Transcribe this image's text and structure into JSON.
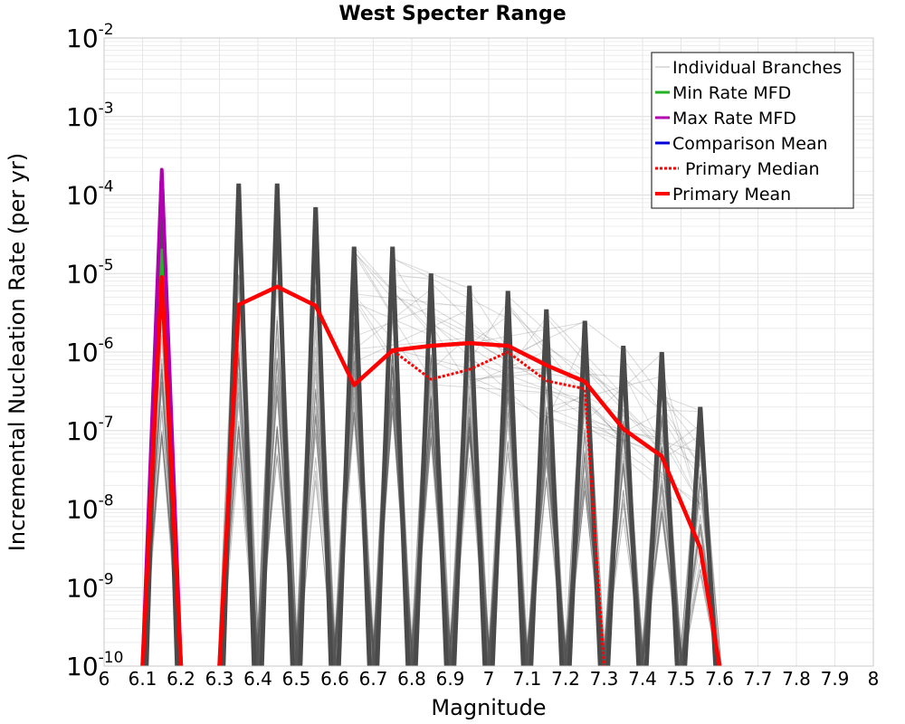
{
  "chart_data": {
    "type": "line",
    "title": "West Specter Range",
    "xlabel": "Magnitude",
    "ylabel": "Incremental Nucleation Rate (per yr)",
    "xlim": [
      6,
      8
    ],
    "ylim": [
      1e-10,
      0.01
    ],
    "yscale": "log",
    "grid": true,
    "legend_position": "top-right",
    "x_ticks": [
      "6",
      "6.1",
      "6.2",
      "6.3",
      "6.4",
      "6.5",
      "6.6",
      "6.7",
      "6.8",
      "6.9",
      "7",
      "7.1",
      "7.2",
      "7.3",
      "7.4",
      "7.5",
      "7.6",
      "7.7",
      "7.8",
      "7.9",
      "8"
    ],
    "y_ticks": [
      {
        "base": "10",
        "exp": "-2"
      },
      {
        "base": "10",
        "exp": "-3"
      },
      {
        "base": "10",
        "exp": "-4"
      },
      {
        "base": "10",
        "exp": "-5"
      },
      {
        "base": "10",
        "exp": "-6"
      },
      {
        "base": "10",
        "exp": "-7"
      },
      {
        "base": "10",
        "exp": "-8"
      },
      {
        "base": "10",
        "exp": "-9"
      },
      {
        "base": "10",
        "exp": "-10"
      }
    ],
    "legend": [
      {
        "label": "Individual Branches",
        "color": "#bbbbbb",
        "style": "thin"
      },
      {
        "label": "Min Rate MFD",
        "color": "#22b322",
        "style": "solid"
      },
      {
        "label": "Max Rate MFD",
        "color": "#b000b0",
        "style": "solid"
      },
      {
        "label": "Comparison Mean",
        "color": "#0000dd",
        "style": "solid"
      },
      {
        "label": "Primary Median",
        "color": "#ff0000",
        "style": "dotted"
      },
      {
        "label": "Primary Mean",
        "color": "#ff0000",
        "style": "thick"
      }
    ],
    "series": [
      {
        "name": "Primary Mean",
        "color": "#ff0000",
        "style": "thick",
        "x": [
          6.15,
          6.35,
          6.45,
          6.55,
          6.65,
          6.75,
          6.85,
          6.95,
          7.05,
          7.15,
          7.25,
          7.35,
          7.45,
          7.55
        ],
        "y": [
          9e-06,
          4e-06,
          6.8e-06,
          3.9e-06,
          3.8e-07,
          1.05e-06,
          1.2e-06,
          1.3e-06,
          1.2e-06,
          6.8e-07,
          4.2e-07,
          1.05e-07,
          4.7e-08,
          3.2e-09
        ]
      },
      {
        "name": "Primary Median",
        "color": "#ff0000",
        "style": "dotted",
        "x": [
          6.15,
          6.35,
          6.45,
          6.55,
          6.65,
          6.75,
          6.85,
          6.95,
          7.05,
          7.15,
          7.25
        ],
        "y": [
          9e-06,
          4e-06,
          6.8e-06,
          3.9e-06,
          3.8e-07,
          1.05e-06,
          4.5e-07,
          6e-07,
          1e-06,
          4.3e-07,
          3.4e-07
        ]
      },
      {
        "name": "Max Rate MFD",
        "color": "#b000b0",
        "style": "solid",
        "x": [
          6.15
        ],
        "y": [
          0.00021
        ]
      },
      {
        "name": "Min Rate MFD",
        "color": "#22b322",
        "style": "solid",
        "x": [
          6.15
        ],
        "y": [
          2e-05
        ]
      },
      {
        "name": "Individual Branches",
        "color": "#555555",
        "style": "thin",
        "x": [
          6.15,
          6.35,
          6.45,
          6.55,
          6.65,
          6.75,
          6.85,
          6.95,
          7.05,
          7.15,
          7.25,
          7.35,
          7.45,
          7.55
        ],
        "y": [
          0.00015,
          0.00014,
          0.00014,
          7e-05,
          2.2e-05,
          2.2e-05,
          1e-05,
          7e-06,
          6e-06,
          3.5e-06,
          2.5e-06,
          1.2e-06,
          1e-06,
          2e-07
        ]
      }
    ]
  }
}
